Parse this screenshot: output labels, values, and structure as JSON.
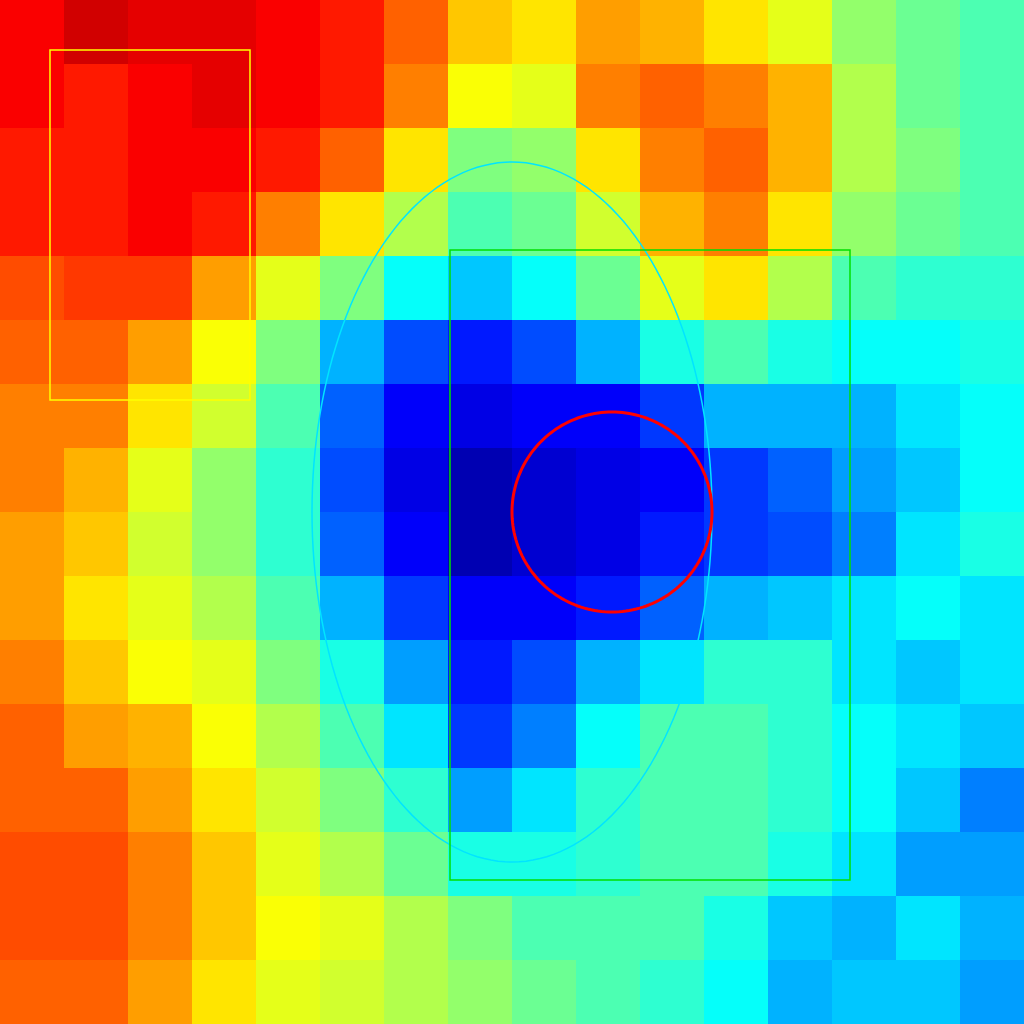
{
  "chart_data": {
    "type": "heatmap",
    "xlim": [
      0,
      1024
    ],
    "ylim": [
      0,
      1024
    ],
    "tick_labels": false,
    "grid": false,
    "zlim": [
      0,
      1
    ],
    "cells": [
      [
        0.88,
        0.92,
        0.9,
        0.9,
        0.88,
        0.85,
        0.78,
        0.68,
        0.65,
        0.72,
        0.7,
        0.65,
        0.6,
        0.52,
        0.48,
        0.45
      ],
      [
        0.88,
        0.85,
        0.88,
        0.9,
        0.88,
        0.85,
        0.75,
        0.62,
        0.6,
        0.75,
        0.78,
        0.75,
        0.7,
        0.55,
        0.48,
        0.45
      ],
      [
        0.85,
        0.85,
        0.88,
        0.88,
        0.85,
        0.78,
        0.65,
        0.5,
        0.52,
        0.65,
        0.75,
        0.78,
        0.7,
        0.55,
        0.5,
        0.45
      ],
      [
        0.85,
        0.85,
        0.88,
        0.85,
        0.75,
        0.65,
        0.55,
        0.45,
        0.48,
        0.58,
        0.7,
        0.75,
        0.65,
        0.52,
        0.48,
        0.45
      ],
      [
        0.8,
        0.82,
        0.82,
        0.72,
        0.6,
        0.5,
        0.38,
        0.32,
        0.38,
        0.48,
        0.6,
        0.65,
        0.55,
        0.45,
        0.42,
        0.42
      ],
      [
        0.78,
        0.78,
        0.72,
        0.62,
        0.5,
        0.3,
        0.2,
        0.15,
        0.2,
        0.3,
        0.4,
        0.45,
        0.4,
        0.38,
        0.38,
        0.4
      ],
      [
        0.75,
        0.75,
        0.65,
        0.58,
        0.45,
        0.22,
        0.12,
        0.1,
        0.12,
        0.12,
        0.18,
        0.3,
        0.3,
        0.3,
        0.35,
        0.38
      ],
      [
        0.75,
        0.7,
        0.6,
        0.52,
        0.42,
        0.2,
        0.1,
        0.05,
        0.08,
        0.1,
        0.12,
        0.18,
        0.22,
        0.28,
        0.32,
        0.38
      ],
      [
        0.72,
        0.68,
        0.58,
        0.52,
        0.42,
        0.22,
        0.12,
        0.05,
        0.08,
        0.1,
        0.15,
        0.18,
        0.2,
        0.25,
        0.35,
        0.4
      ],
      [
        0.72,
        0.65,
        0.6,
        0.55,
        0.45,
        0.3,
        0.18,
        0.12,
        0.12,
        0.15,
        0.22,
        0.3,
        0.32,
        0.35,
        0.38,
        0.35
      ],
      [
        0.75,
        0.68,
        0.62,
        0.6,
        0.5,
        0.4,
        0.28,
        0.15,
        0.2,
        0.3,
        0.35,
        0.42,
        0.42,
        0.35,
        0.32,
        0.35
      ],
      [
        0.78,
        0.72,
        0.7,
        0.62,
        0.55,
        0.45,
        0.35,
        0.18,
        0.25,
        0.38,
        0.45,
        0.45,
        0.42,
        0.38,
        0.35,
        0.32
      ],
      [
        0.78,
        0.78,
        0.72,
        0.65,
        0.58,
        0.5,
        0.42,
        0.28,
        0.35,
        0.42,
        0.45,
        0.45,
        0.42,
        0.38,
        0.32,
        0.25
      ],
      [
        0.8,
        0.8,
        0.75,
        0.68,
        0.6,
        0.55,
        0.48,
        0.4,
        0.4,
        0.42,
        0.45,
        0.45,
        0.4,
        0.35,
        0.28,
        0.28
      ],
      [
        0.8,
        0.8,
        0.75,
        0.68,
        0.62,
        0.6,
        0.55,
        0.5,
        0.45,
        0.45,
        0.45,
        0.4,
        0.32,
        0.3,
        0.35,
        0.3
      ],
      [
        0.78,
        0.78,
        0.72,
        0.65,
        0.6,
        0.58,
        0.55,
        0.52,
        0.48,
        0.45,
        0.42,
        0.38,
        0.3,
        0.32,
        0.32,
        0.28
      ]
    ],
    "shapes": [
      {
        "type": "rect",
        "x": [
          50,
          250
        ],
        "y": [
          50,
          400
        ],
        "color": "#ffff00"
      },
      {
        "type": "ellipse",
        "center": [
          512,
          512
        ],
        "radius": [
          200,
          350
        ],
        "color": "#00e5ff"
      },
      {
        "type": "rect",
        "x": [
          450,
          850
        ],
        "y": [
          250,
          880
        ],
        "color": "#00e000"
      },
      {
        "type": "circle",
        "center": [
          612,
          512
        ],
        "radius": 100,
        "color": "#ff0000"
      }
    ]
  }
}
